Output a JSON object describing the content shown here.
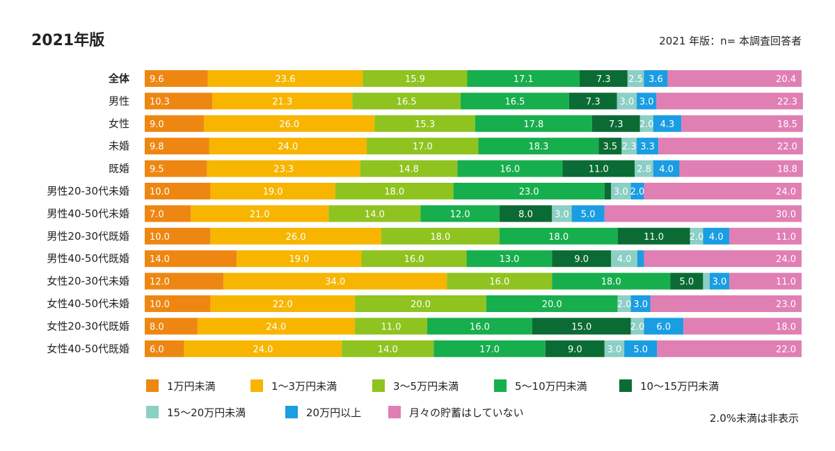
{
  "header": {
    "title": "2021年版",
    "subtitle": "2021 年版：n= 本調査回答者"
  },
  "note": "2.0%未満は非表示",
  "chart_data": {
    "type": "bar",
    "orientation": "horizontal",
    "stacked": true,
    "percent": true,
    "categories": [
      "全体",
      "男性",
      "女性",
      "未婚",
      "既婚",
      "男性20-30代未婚",
      "男性40-50代未婚",
      "男性20-30代既婚",
      "男性40-50代既婚",
      "女性20-30代未婚",
      "女性40-50代未婚",
      "女性20-30代既婚",
      "女性40-50代既婚"
    ],
    "series": [
      {
        "name": "1万円未満",
        "color": "#ee8712",
        "values": [
          9.6,
          10.3,
          9.0,
          9.8,
          9.5,
          10.0,
          7.0,
          10.0,
          14.0,
          12.0,
          10.0,
          8.0,
          6.0
        ]
      },
      {
        "name": "1～3万円未満",
        "color": "#f7b500",
        "values": [
          23.6,
          21.3,
          26.0,
          24.0,
          23.3,
          19.0,
          21.0,
          26.0,
          19.0,
          34.0,
          22.0,
          24.0,
          24.0
        ]
      },
      {
        "name": "3～5万円未満",
        "color": "#8fc31f",
        "values": [
          15.9,
          16.5,
          15.3,
          17.0,
          14.8,
          18.0,
          14.0,
          18.0,
          16.0,
          16.0,
          20.0,
          11.0,
          14.0
        ]
      },
      {
        "name": "5～10万円未満",
        "color": "#17ae4d",
        "values": [
          17.1,
          16.5,
          17.8,
          18.3,
          16.0,
          23.0,
          12.0,
          18.0,
          13.0,
          18.0,
          20.0,
          16.0,
          17.0
        ]
      },
      {
        "name": "10～15万円未満",
        "color": "#0b6b34",
        "values": [
          7.3,
          7.3,
          7.3,
          3.5,
          11.0,
          1.0,
          8.0,
          11.0,
          9.0,
          5.0,
          0.0,
          15.0,
          9.0
        ]
      },
      {
        "name": "15～20万円未満",
        "color": "#8ccfc5",
        "values": [
          2.5,
          3.0,
          2.0,
          2.3,
          2.8,
          3.0,
          3.0,
          2.0,
          4.0,
          1.0,
          2.0,
          2.0,
          3.0
        ]
      },
      {
        "name": "20万円以上",
        "color": "#1a9de2",
        "values": [
          3.6,
          3.0,
          4.3,
          3.3,
          4.0,
          2.0,
          5.0,
          4.0,
          1.0,
          3.0,
          3.0,
          6.0,
          5.0
        ]
      },
      {
        "name": "月々の貯蓄はしていない",
        "color": "#e07fb4",
        "values": [
          20.4,
          22.3,
          18.5,
          22.0,
          18.8,
          24.0,
          30.0,
          11.0,
          24.0,
          11.0,
          23.0,
          18.0,
          22.0
        ]
      }
    ],
    "label_threshold": 2.0,
    "xlim": [
      0,
      100
    ],
    "grid": false,
    "legend_position": "bottom"
  }
}
